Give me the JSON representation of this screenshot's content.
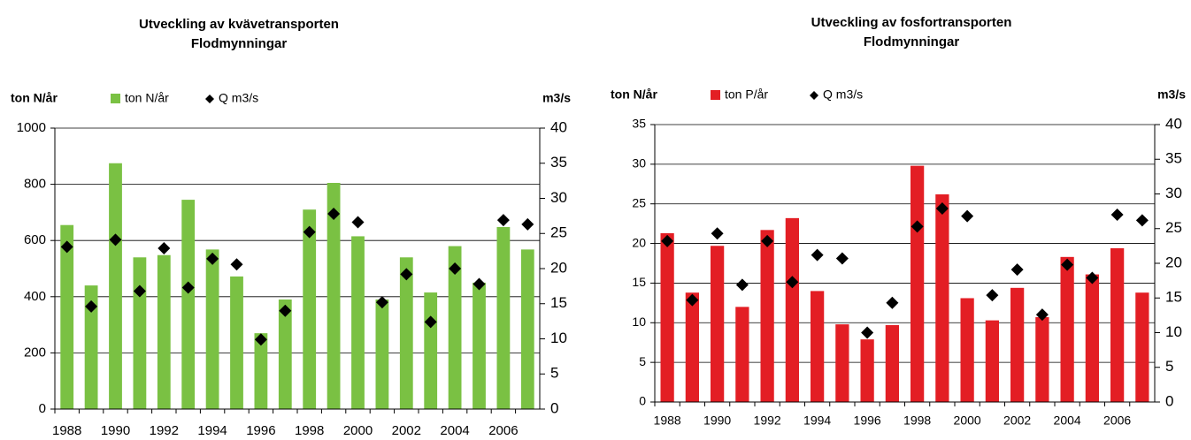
{
  "chart_data": [
    {
      "type": "bar",
      "title": "Utveckling av kvävetransporten",
      "subtitle": "Flodmynningar",
      "ylabel": "ton N/år",
      "y2label": "m3/s",
      "categories": [
        "1988",
        null,
        "1990",
        null,
        "1992",
        null,
        "1994",
        null,
        "1996",
        null,
        "1998",
        null,
        "2000",
        null,
        "2002",
        null,
        "2004",
        null,
        "2006",
        null
      ],
      "series": [
        {
          "name": "ton N/år",
          "color": "#7ac143",
          "values": [
            655,
            440,
            875,
            540,
            548,
            745,
            568,
            472,
            270,
            390,
            710,
            805,
            615,
            390,
            540,
            415,
            580,
            450,
            648,
            568
          ]
        },
        {
          "name": "Q m3/s",
          "type": "scatter",
          "axis": "y2",
          "color": "#000000",
          "values": [
            23.1,
            14.6,
            24.1,
            16.8,
            22.9,
            17.3,
            21.4,
            20.6,
            9.9,
            14.0,
            25.2,
            27.8,
            26.6,
            15.2,
            19.2,
            12.4,
            20.0,
            17.8,
            26.9,
            26.3
          ]
        }
      ],
      "ylim": [
        0,
        1000
      ],
      "yticks": [
        0,
        200,
        400,
        600,
        800,
        1000
      ],
      "y2lim": [
        0,
        40
      ],
      "y2ticks": [
        0,
        5,
        10,
        15,
        20,
        25,
        30,
        35,
        40
      ],
      "grid": true
    },
    {
      "type": "bar",
      "title": "Utveckling av fosfortransporten",
      "subtitle": "Flodmynningar",
      "ylabel": "ton N/år",
      "y2label": "m3/s",
      "categories": [
        "1988",
        null,
        "1990",
        null,
        "1992",
        null,
        "1994",
        null,
        "1996",
        null,
        "1998",
        null,
        "2000",
        null,
        "2002",
        null,
        "2004",
        null,
        "2006",
        null
      ],
      "series": [
        {
          "name": "ton P/år",
          "color": "#e31e24",
          "values": [
            21.3,
            13.8,
            19.7,
            12.0,
            21.7,
            23.2,
            14.0,
            9.8,
            7.9,
            9.7,
            29.8,
            26.2,
            13.1,
            10.3,
            14.4,
            10.7,
            18.3,
            16.1,
            19.4,
            13.8
          ]
        },
        {
          "name": "Q m3/s",
          "type": "scatter",
          "axis": "y2",
          "color": "#000000",
          "values": [
            23.2,
            14.7,
            24.3,
            16.9,
            23.2,
            17.3,
            21.2,
            20.7,
            10.0,
            14.3,
            25.3,
            27.9,
            26.8,
            15.4,
            19.1,
            12.6,
            19.8,
            17.9,
            27.0,
            26.2
          ]
        }
      ],
      "ylim": [
        0,
        35
      ],
      "yticks": [
        0,
        5,
        10,
        15,
        20,
        25,
        30,
        35
      ],
      "y2lim": [
        0,
        40
      ],
      "y2ticks": [
        0,
        5,
        10,
        15,
        20,
        25,
        30,
        35,
        40
      ],
      "grid": true
    }
  ]
}
